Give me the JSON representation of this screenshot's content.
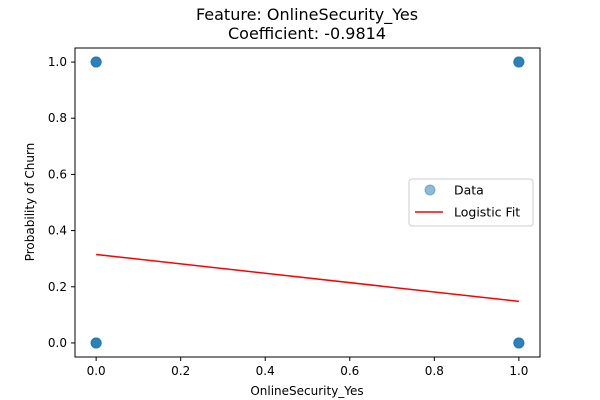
{
  "chart_data": {
    "type": "scatter",
    "title": "Feature: OnlineSecurity_Yes",
    "subtitle": "Coefficient: -0.9814",
    "xlabel": "OnlineSecurity_Yes",
    "ylabel": "Probability of Churn",
    "xlim": [
      -0.05,
      1.05
    ],
    "ylim": [
      -0.05,
      1.05
    ],
    "xticks": [
      "0.0",
      "0.2",
      "0.4",
      "0.6",
      "0.8",
      "1.0"
    ],
    "yticks": [
      "0.0",
      "0.2",
      "0.4",
      "0.6",
      "0.8",
      "1.0"
    ],
    "grid": false,
    "legend_position": "center-right",
    "series": [
      {
        "name": "Data",
        "kind": "scatter",
        "color": "#1f77b4",
        "points": [
          {
            "x": 0,
            "y": 1
          },
          {
            "x": 1,
            "y": 1
          },
          {
            "x": 0,
            "y": 0
          },
          {
            "x": 1,
            "y": 0
          }
        ]
      },
      {
        "name": "Logistic Fit",
        "kind": "line",
        "color": "#ff0000",
        "points": [
          {
            "x": 0,
            "y": 0.315
          },
          {
            "x": 1,
            "y": 0.148
          }
        ]
      }
    ]
  }
}
